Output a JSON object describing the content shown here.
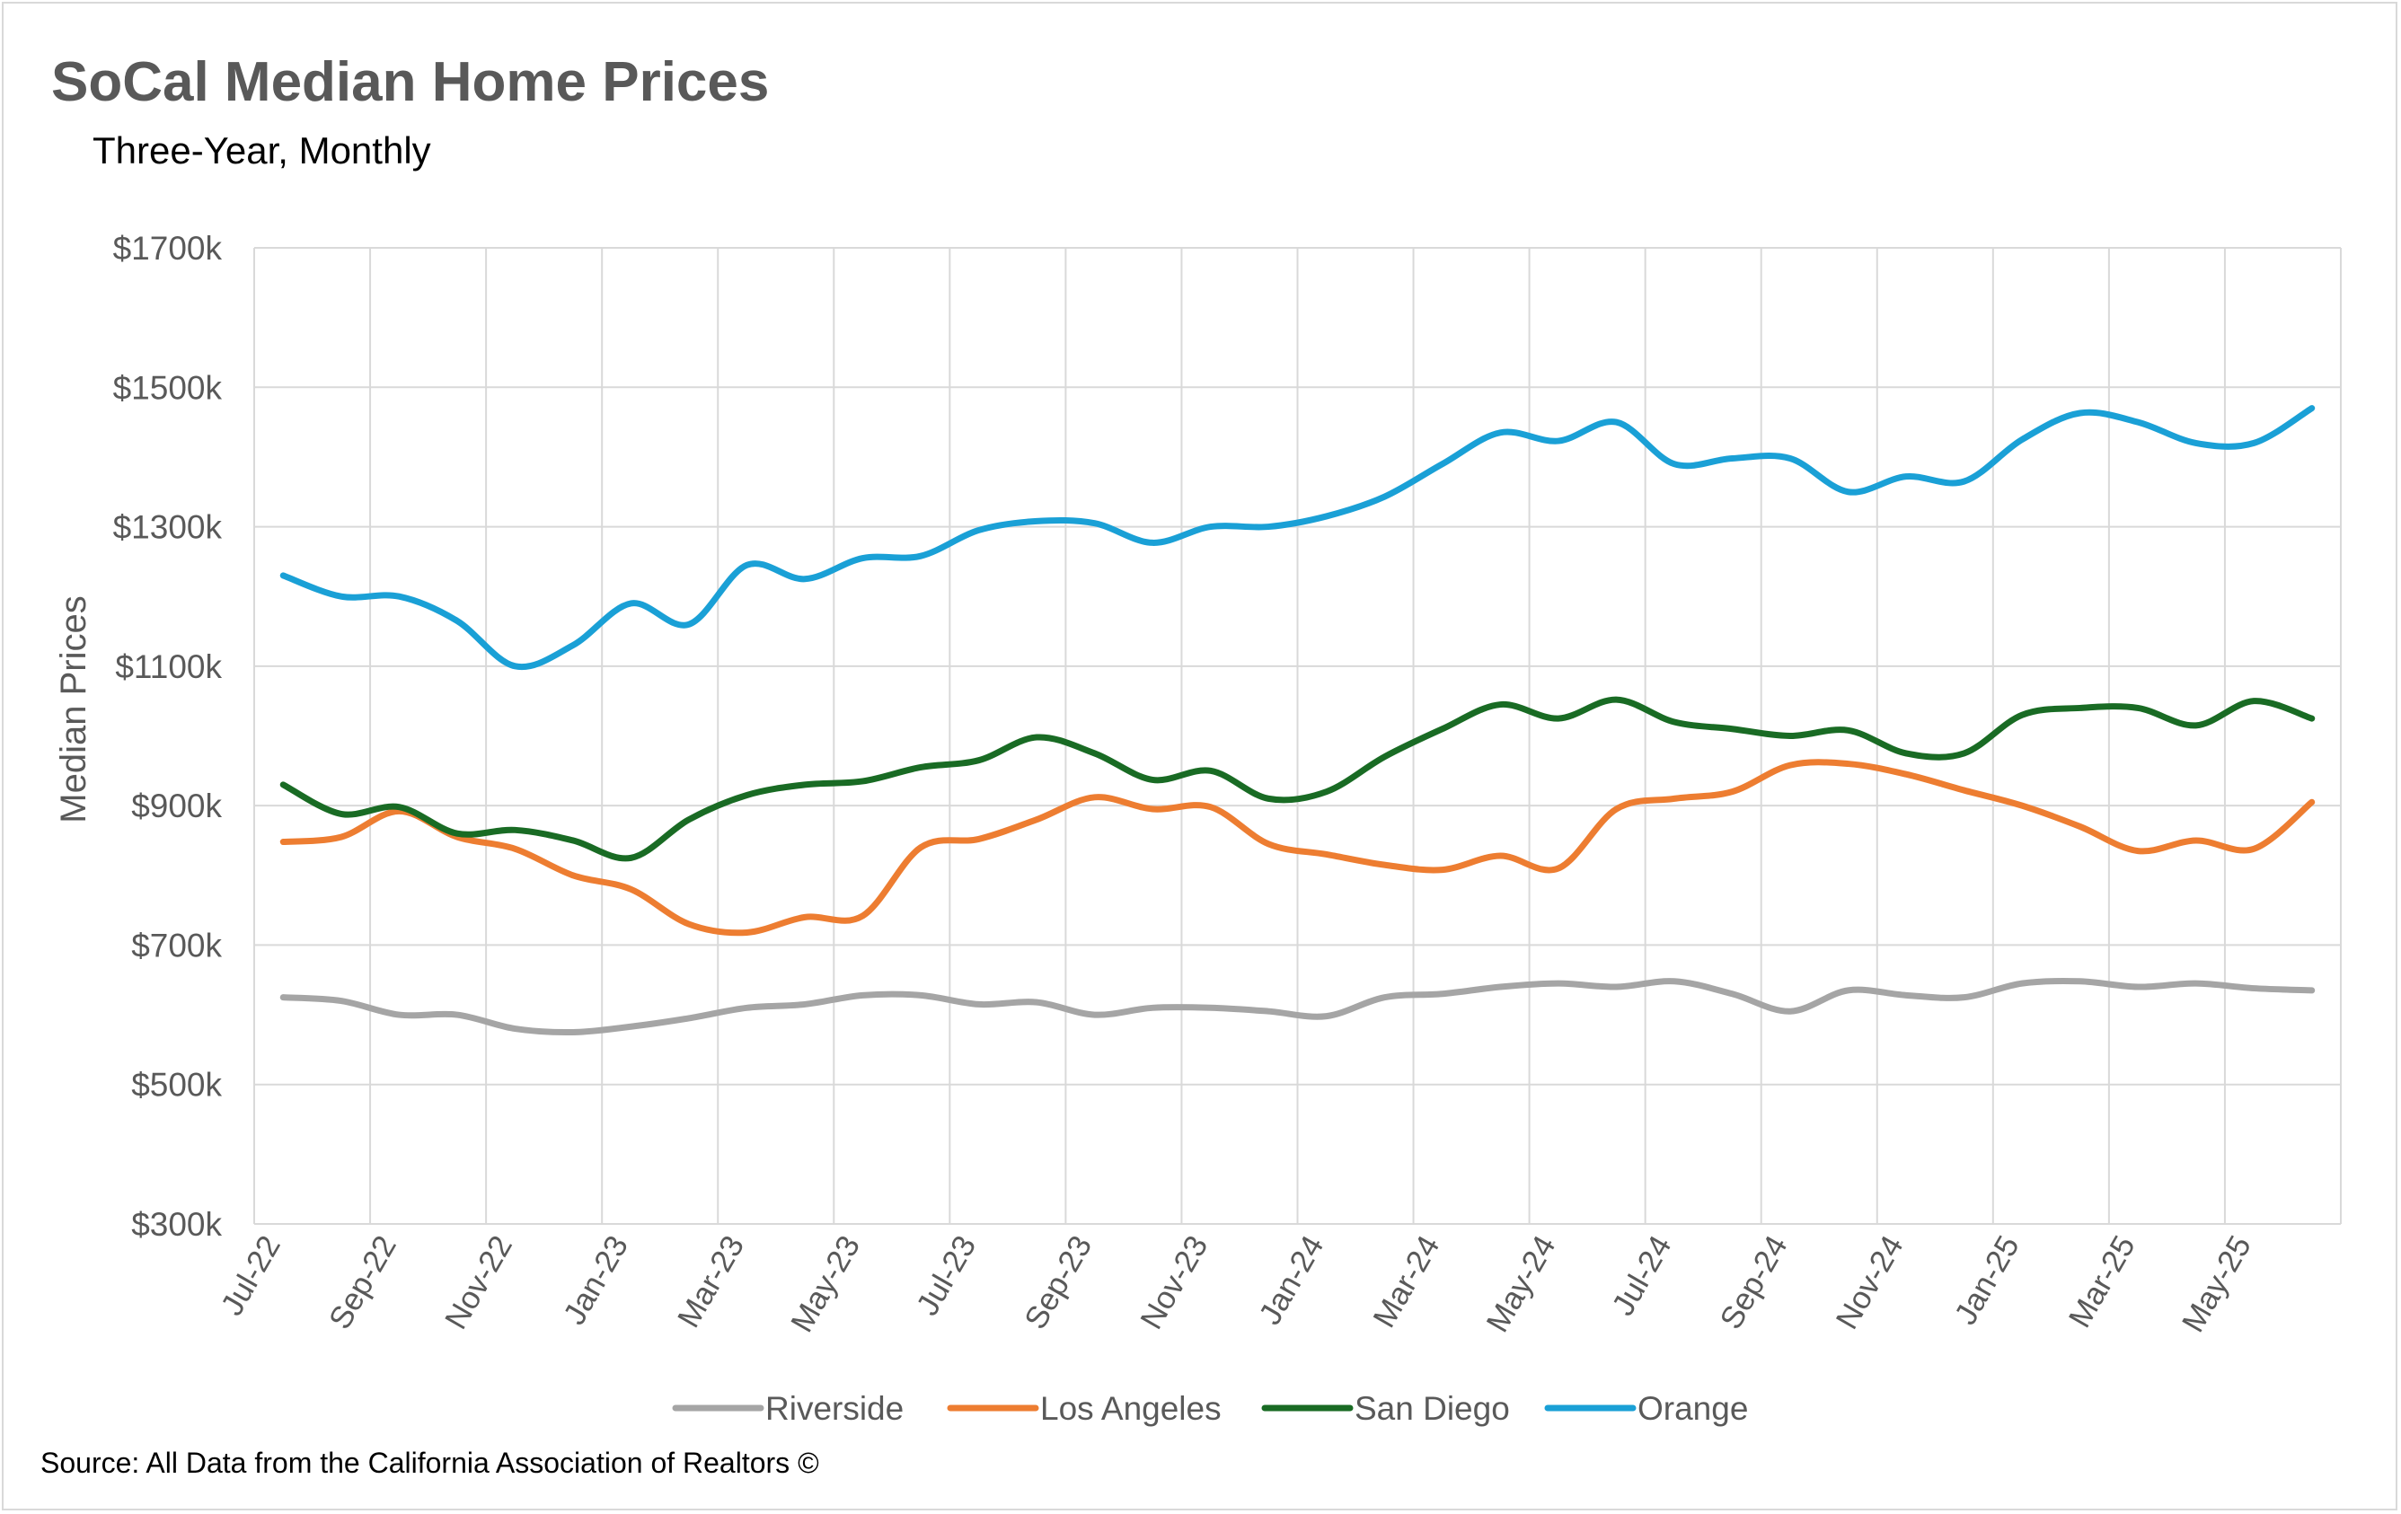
{
  "chart_data": {
    "type": "line",
    "title": "SoCal Median Home Prices",
    "subtitle": "Three-Year, Monthly",
    "ylabel": "Median Prices",
    "xlabel": "",
    "source": "Source: All Data from the California Association of Realtors ©",
    "ylim": [
      300,
      1700
    ],
    "yticks": [
      300,
      500,
      700,
      900,
      1100,
      1300,
      1500,
      1700
    ],
    "ytick_labels": [
      "$300k",
      "$500k",
      "$700k",
      "$900k",
      "$1100k",
      "$1300k",
      "$1500k",
      "$1700k"
    ],
    "x": [
      "Jul-22",
      "Aug-22",
      "Sep-22",
      "Oct-22",
      "Nov-22",
      "Dec-22",
      "Jan-23",
      "Feb-23",
      "Mar-23",
      "Apr-23",
      "May-23",
      "Jun-23",
      "Jul-23",
      "Aug-23",
      "Sep-23",
      "Oct-23",
      "Nov-23",
      "Dec-23",
      "Jan-24",
      "Feb-24",
      "Mar-24",
      "Apr-24",
      "May-24",
      "Jun-24",
      "Jul-24",
      "Aug-24",
      "Sep-24",
      "Oct-24",
      "Nov-24",
      "Dec-24",
      "Jan-25",
      "Feb-25",
      "Mar-25",
      "Apr-25",
      "May-25",
      "Jun-25"
    ],
    "xtick_labels": [
      "Jul-22",
      "Sep-22",
      "Nov-22",
      "Jan-23",
      "Mar-23",
      "May-23",
      "Jul-23",
      "Sep-23",
      "Nov-23",
      "Jan-24",
      "Mar-24",
      "May-24",
      "Jul-24",
      "Sep-24",
      "Nov-24",
      "Jan-25",
      "Mar-25",
      "May-25"
    ],
    "grid": true,
    "legend_position": "bottom",
    "series": [
      {
        "name": "Riverside",
        "color": "#a5a5a5",
        "values": [
          625,
          620,
          600,
          600,
          580,
          575,
          583,
          595,
          610,
          615,
          628,
          628,
          615,
          618,
          600,
          610,
          610,
          605,
          598,
          625,
          630,
          640,
          645,
          640,
          648,
          630,
          605,
          635,
          628,
          625,
          645,
          648,
          640,
          645,
          638,
          635
        ]
      },
      {
        "name": "Los Angeles",
        "color": "#ed7d31",
        "values": [
          848,
          855,
          892,
          855,
          838,
          800,
          780,
          730,
          718,
          740,
          742,
          840,
          852,
          880,
          912,
          895,
          898,
          845,
          830,
          815,
          808,
          828,
          810,
          895,
          910,
          920,
          958,
          960,
          945,
          922,
          900,
          870,
          835,
          850,
          838,
          905
        ]
      },
      {
        "name": "San Diego",
        "color": "#196b24",
        "values": [
          930,
          888,
          898,
          860,
          865,
          850,
          825,
          880,
          915,
          930,
          935,
          955,
          965,
          998,
          975,
          937,
          950,
          910,
          920,
          970,
          1010,
          1045,
          1025,
          1052,
          1020,
          1010,
          1000,
          1008,
          975,
          975,
          1030,
          1040,
          1040,
          1015,
          1050,
          1025
        ]
      },
      {
        "name": "Orange",
        "color": "#1aa0d6",
        "values": [
          1230,
          1200,
          1200,
          1165,
          1100,
          1130,
          1190,
          1160,
          1245,
          1225,
          1255,
          1258,
          1295,
          1308,
          1305,
          1277,
          1300,
          1300,
          1315,
          1343,
          1390,
          1435,
          1423,
          1450,
          1390,
          1398,
          1398,
          1350,
          1372,
          1365,
          1425,
          1463,
          1450,
          1420,
          1420,
          1470
        ]
      }
    ]
  }
}
